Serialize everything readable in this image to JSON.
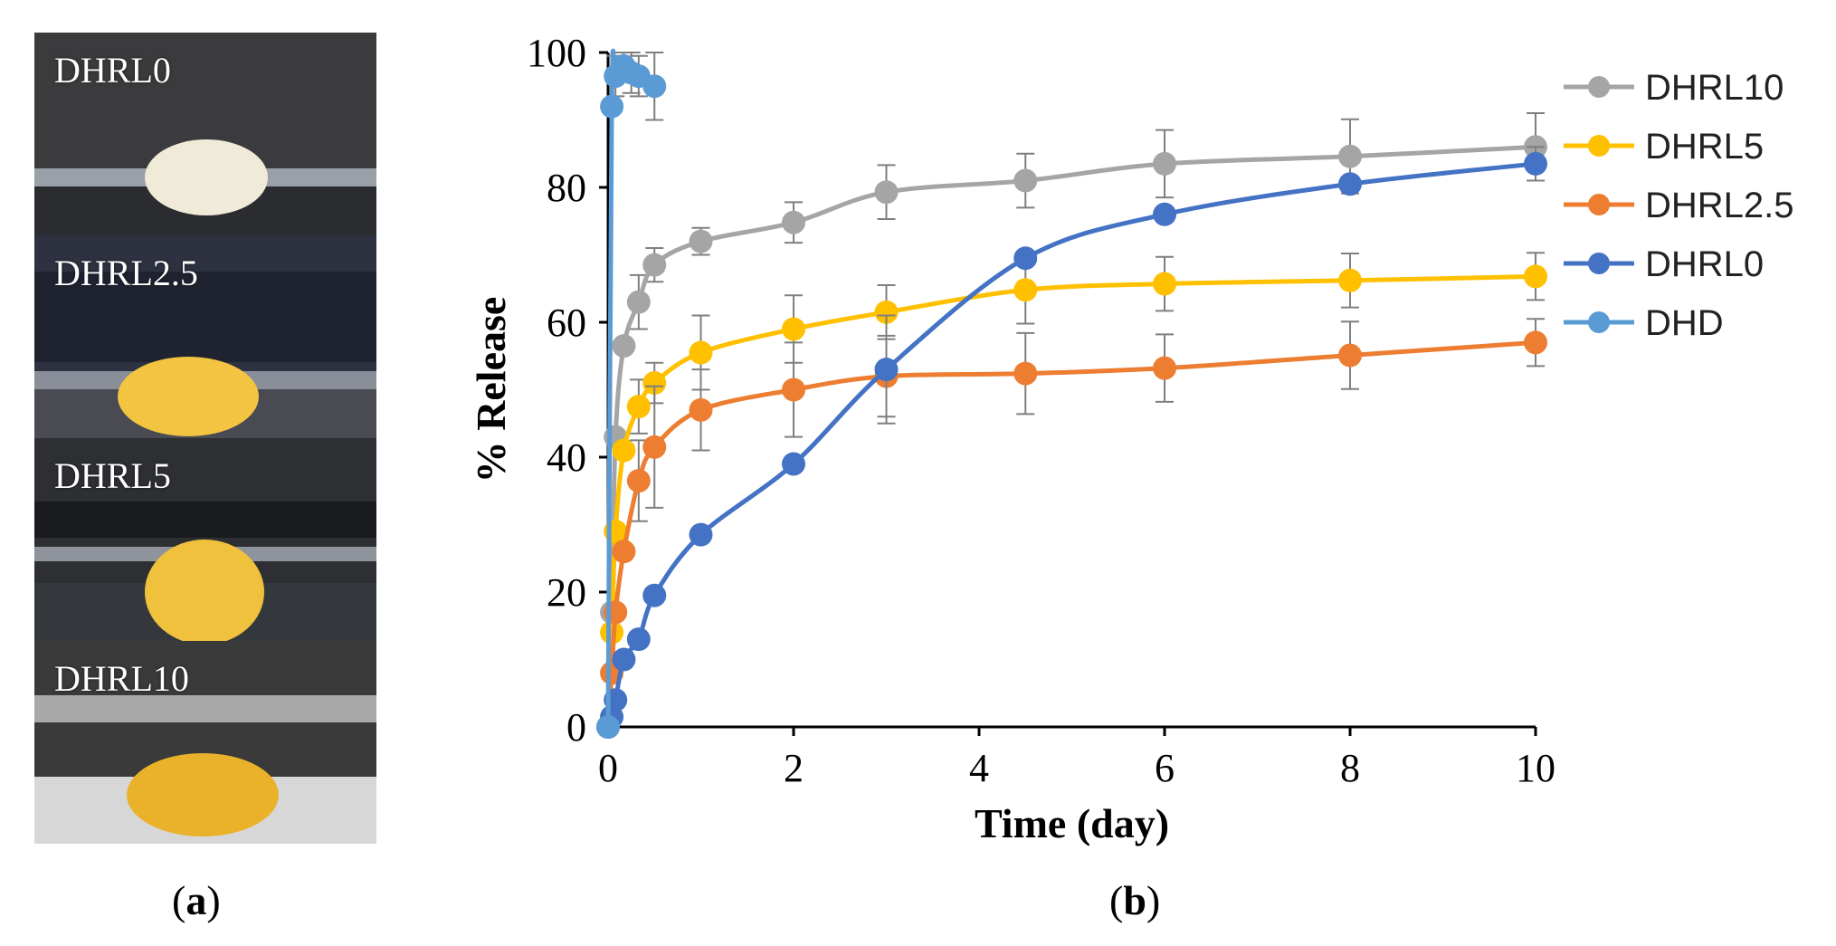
{
  "panel_a": {
    "caption_open": "(",
    "caption_letter": "a",
    "caption_close": ")",
    "photos": [
      {
        "label": "DHRL0",
        "bead_color": "#f0ead8"
      },
      {
        "label": "DHRL2.5",
        "bead_color": "#f2c441"
      },
      {
        "label": "DHRL5",
        "bead_color": "#efc13c"
      },
      {
        "label": "DHRL10",
        "bead_color": "#eab22a"
      }
    ]
  },
  "panel_b": {
    "caption_open": "(",
    "caption_letter": "b",
    "caption_close": ")"
  },
  "chart_data": {
    "type": "line",
    "title": "",
    "xlabel": "Time (day)",
    "ylabel": "% Release",
    "xlim": [
      0,
      10
    ],
    "ylim": [
      0,
      100
    ],
    "xticks": [
      0,
      2,
      4,
      6,
      8,
      10
    ],
    "yticks": [
      0,
      20,
      40,
      60,
      80,
      100
    ],
    "grid": false,
    "legend_position": "right",
    "series": [
      {
        "name": "DHRL10",
        "color": "#a5a5a5",
        "x": [
          0,
          0.04,
          0.08,
          0.17,
          0.33,
          0.5,
          1,
          2,
          3,
          4.5,
          6,
          8,
          10
        ],
        "y": [
          0,
          17,
          43,
          56.5,
          63,
          68.5,
          72,
          74.8,
          79.3,
          81,
          83.5,
          84.6,
          86
        ],
        "err": [
          0,
          0,
          0,
          0,
          4,
          2.5,
          2,
          3,
          4,
          4,
          5,
          5.5,
          5
        ]
      },
      {
        "name": "DHRL5",
        "color": "#ffc000",
        "x": [
          0,
          0.04,
          0.08,
          0.17,
          0.33,
          0.5,
          1,
          2,
          3,
          4.5,
          6,
          8,
          10
        ],
        "y": [
          0,
          14,
          29,
          41,
          47.5,
          51,
          55.5,
          59,
          61.5,
          64.8,
          65.7,
          66.2,
          66.8
        ],
        "err": [
          0,
          0,
          0,
          0,
          4,
          3,
          5.5,
          5,
          4,
          5,
          4,
          4,
          3.5
        ]
      },
      {
        "name": "DHRL2.5",
        "color": "#ed7d31",
        "x": [
          0,
          0.04,
          0.08,
          0.17,
          0.33,
          0.5,
          1,
          2,
          3,
          4.5,
          6,
          8,
          10
        ],
        "y": [
          0,
          8,
          17,
          26,
          36.5,
          41.5,
          47,
          50,
          52,
          52.4,
          53.2,
          55.1,
          57
        ],
        "err": [
          0,
          0,
          0,
          0,
          6,
          9,
          6,
          7,
          6,
          6,
          5,
          5,
          3.5
        ]
      },
      {
        "name": "DHRL0",
        "color": "#4472c4",
        "x": [
          0,
          0.04,
          0.08,
          0.17,
          0.33,
          0.5,
          1,
          2,
          3,
          4.5,
          6,
          8,
          10
        ],
        "y": [
          0,
          1.5,
          4,
          10,
          13,
          19.5,
          28.5,
          39,
          53,
          69.5,
          76,
          80.5,
          83.5
        ],
        "err": [
          0,
          0,
          0,
          0,
          0,
          0,
          0,
          0,
          8,
          0,
          0,
          0,
          2.5
        ]
      },
      {
        "name": "DHD",
        "color": "#5b9bd5",
        "x": [
          0,
          0.04,
          0.08,
          0.17,
          0.25,
          0.33,
          0.5
        ],
        "y": [
          0,
          92,
          96.5,
          98,
          97,
          96.5,
          95
        ],
        "err": [
          0,
          0,
          3,
          2,
          3,
          3,
          5
        ]
      }
    ]
  }
}
